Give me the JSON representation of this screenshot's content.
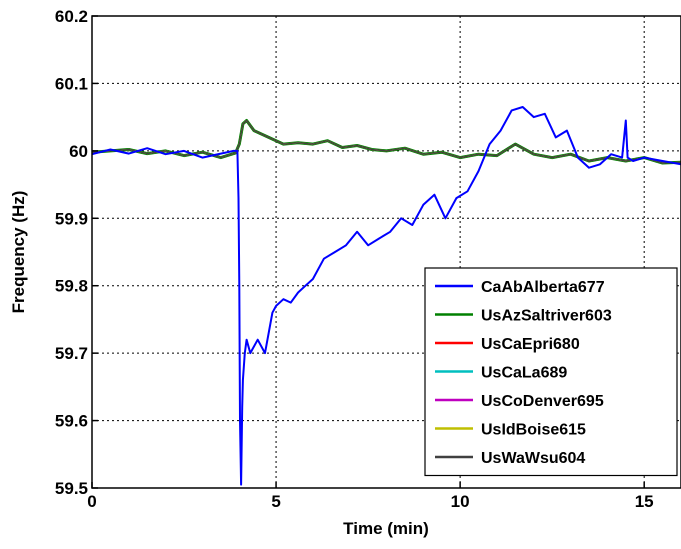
{
  "chart_data": {
    "type": "line",
    "title": "",
    "xlabel": "Time (min)",
    "ylabel": "Frequency (Hz)",
    "xlim": [
      0,
      16
    ],
    "ylim": [
      59.5,
      60.2
    ],
    "xticks": [
      0,
      5,
      10,
      15
    ],
    "yticks": [
      59.5,
      59.6,
      59.7,
      59.8,
      59.9,
      60,
      60.1,
      60.2
    ],
    "xtick_labels": [
      "0",
      "5",
      "10",
      "15"
    ],
    "ytick_labels": [
      "59.5",
      "59.6",
      "59.7",
      "59.8",
      "59.9",
      "60",
      "60.1",
      "60.2"
    ],
    "grid": true,
    "legend_position": "bottom-right",
    "series": [
      {
        "name": "CaAbAlberta677",
        "color": "#0000ff",
        "x": [
          0,
          0.5,
          1,
          1.5,
          2,
          2.5,
          3,
          3.5,
          3.85,
          3.95,
          3.98,
          4.0,
          4.02,
          4.05,
          4.08,
          4.1,
          4.15,
          4.2,
          4.3,
          4.5,
          4.7,
          4.9,
          5.0,
          5.2,
          5.4,
          5.6,
          5.8,
          6.0,
          6.3,
          6.6,
          6.9,
          7.2,
          7.5,
          7.8,
          8.1,
          8.4,
          8.7,
          9.0,
          9.3,
          9.6,
          9.9,
          10.2,
          10.5,
          10.8,
          11.1,
          11.4,
          11.7,
          12.0,
          12.3,
          12.6,
          12.9,
          13.2,
          13.5,
          13.8,
          14.1,
          14.4,
          14.5,
          14.55,
          14.7,
          15.0,
          15.5,
          16.0
        ],
        "y": [
          59.995,
          60.002,
          59.996,
          60.004,
          59.995,
          60.0,
          59.99,
          59.996,
          60.0,
          60.0,
          59.93,
          59.8,
          59.6,
          59.505,
          59.62,
          59.66,
          59.7,
          59.72,
          59.7,
          59.72,
          59.7,
          59.76,
          59.77,
          59.78,
          59.775,
          59.79,
          59.8,
          59.81,
          59.84,
          59.85,
          59.86,
          59.88,
          59.86,
          59.87,
          59.88,
          59.9,
          59.89,
          59.92,
          59.935,
          59.9,
          59.93,
          59.94,
          59.97,
          60.01,
          60.03,
          60.06,
          60.065,
          60.05,
          60.055,
          60.02,
          60.03,
          59.99,
          59.975,
          59.98,
          59.995,
          59.99,
          60.045,
          59.99,
          59.985,
          59.99,
          59.985,
          59.98
        ]
      },
      {
        "name": "UsAzSaltriver603",
        "color": "#008000",
        "x": [
          0,
          0.5,
          1,
          1.5,
          2,
          2.5,
          3,
          3.5,
          3.9,
          4.0,
          4.1,
          4.2,
          4.4,
          4.8,
          5.2,
          5.6,
          6.0,
          6.4,
          6.8,
          7.2,
          7.6,
          8.0,
          8.5,
          9.0,
          9.5,
          10.0,
          10.5,
          11.0,
          11.5,
          12.0,
          12.5,
          13.0,
          13.5,
          14.0,
          14.5,
          15.0,
          15.5,
          16.0
        ],
        "y": [
          59.998,
          60.0,
          60.002,
          59.996,
          60.0,
          59.993,
          59.998,
          59.99,
          59.997,
          60.01,
          60.04,
          60.045,
          60.03,
          60.02,
          60.01,
          60.012,
          60.01,
          60.015,
          60.005,
          60.008,
          60.002,
          60.0,
          60.004,
          59.995,
          59.998,
          59.99,
          59.995,
          59.993,
          60.01,
          59.995,
          59.99,
          59.995,
          59.985,
          59.99,
          59.985,
          59.99,
          59.982,
          59.983
        ]
      },
      {
        "name": "UsCaEpri680",
        "color": "#ff0000",
        "x": [
          0,
          0.5,
          1,
          1.5,
          2,
          2.5,
          3,
          3.5,
          3.9,
          4.0,
          4.1,
          4.2,
          4.4,
          4.8,
          5.2,
          5.6,
          6.0,
          6.4,
          6.8,
          7.2,
          7.6,
          8.0,
          8.5,
          9.0,
          9.5,
          10.0,
          10.5,
          11.0,
          11.5,
          12.0,
          12.5,
          13.0,
          13.5,
          14.0,
          14.5,
          15.0,
          15.5,
          16.0
        ],
        "y": [
          59.998,
          60.0,
          60.002,
          59.996,
          60.0,
          59.993,
          59.998,
          59.99,
          59.997,
          60.01,
          60.04,
          60.045,
          60.03,
          60.02,
          60.01,
          60.012,
          60.01,
          60.015,
          60.005,
          60.008,
          60.002,
          60.0,
          60.004,
          59.995,
          59.998,
          59.99,
          59.995,
          59.993,
          60.01,
          59.995,
          59.99,
          59.995,
          59.985,
          59.99,
          59.985,
          59.99,
          59.982,
          59.983
        ]
      },
      {
        "name": "UsCaLa689",
        "color": "#00bfbf",
        "x": [
          0,
          0.5,
          1,
          1.5,
          2,
          2.5,
          3,
          3.5,
          3.9,
          4.0,
          4.1,
          4.2,
          4.4,
          4.8,
          5.2,
          5.6,
          6.0,
          6.4,
          6.8,
          7.2,
          7.6,
          8.0,
          8.5,
          9.0,
          9.5,
          10.0,
          10.5,
          11.0,
          11.5,
          12.0,
          12.5,
          13.0,
          13.5,
          14.0,
          14.5,
          15.0,
          15.5,
          16.0
        ],
        "y": [
          59.998,
          60.0,
          60.002,
          59.996,
          60.0,
          59.993,
          59.998,
          59.99,
          59.997,
          60.01,
          60.04,
          60.045,
          60.03,
          60.02,
          60.01,
          60.012,
          60.01,
          60.015,
          60.005,
          60.008,
          60.002,
          60.0,
          60.004,
          59.995,
          59.998,
          59.99,
          59.995,
          59.993,
          60.01,
          59.995,
          59.99,
          59.995,
          59.985,
          59.99,
          59.985,
          59.99,
          59.982,
          59.983
        ]
      },
      {
        "name": "UsCoDenver695",
        "color": "#bf00bf",
        "x": [
          0,
          0.5,
          1,
          1.5,
          2,
          2.5,
          3,
          3.5,
          3.9,
          4.0,
          4.1,
          4.2,
          4.4,
          4.8,
          5.2,
          5.6,
          6.0,
          6.4,
          6.8,
          7.2,
          7.6,
          8.0,
          8.5,
          9.0,
          9.5,
          10.0,
          10.5,
          11.0,
          11.5,
          12.0,
          12.5,
          13.0,
          13.5,
          14.0,
          14.5,
          15.0,
          15.5,
          16.0
        ],
        "y": [
          59.998,
          60.0,
          60.002,
          59.996,
          60.0,
          59.993,
          59.998,
          59.99,
          59.997,
          60.01,
          60.04,
          60.045,
          60.03,
          60.02,
          60.01,
          60.012,
          60.01,
          60.015,
          60.005,
          60.008,
          60.002,
          60.0,
          60.004,
          59.995,
          59.998,
          59.99,
          59.995,
          59.993,
          60.01,
          59.995,
          59.99,
          59.995,
          59.985,
          59.99,
          59.985,
          59.99,
          59.982,
          59.983
        ]
      },
      {
        "name": "UsIdBoise615",
        "color": "#bfbf00",
        "x": [
          0,
          0.5,
          1,
          1.5,
          2,
          2.5,
          3,
          3.5,
          3.9,
          4.0,
          4.1,
          4.2,
          4.4,
          4.8,
          5.2,
          5.6,
          6.0,
          6.4,
          6.8,
          7.2,
          7.6,
          8.0,
          8.5,
          9.0,
          9.5,
          10.0,
          10.5,
          11.0,
          11.5,
          12.0,
          12.5,
          13.0,
          13.5,
          14.0,
          14.5,
          15.0,
          15.5,
          16.0
        ],
        "y": [
          59.998,
          60.0,
          60.002,
          59.996,
          60.0,
          59.993,
          59.998,
          59.99,
          59.997,
          60.01,
          60.04,
          60.045,
          60.03,
          60.02,
          60.01,
          60.012,
          60.01,
          60.015,
          60.005,
          60.008,
          60.002,
          60.0,
          60.004,
          59.995,
          59.998,
          59.99,
          59.995,
          59.993,
          60.01,
          59.995,
          59.99,
          59.995,
          59.985,
          59.99,
          59.985,
          59.99,
          59.982,
          59.983
        ]
      },
      {
        "name": "UsWaWsu604",
        "color": "#404040",
        "x": [
          0,
          0.5,
          1,
          1.5,
          2,
          2.5,
          3,
          3.5,
          3.9,
          4.0,
          4.1,
          4.2,
          4.4,
          4.8,
          5.2,
          5.6,
          6.0,
          6.4,
          6.8,
          7.2,
          7.6,
          8.0,
          8.5,
          9.0,
          9.5,
          10.0,
          10.5,
          11.0,
          11.5,
          12.0,
          12.5,
          13.0,
          13.5,
          14.0,
          14.5,
          15.0,
          15.5,
          16.0
        ],
        "y": [
          59.998,
          60.0,
          60.002,
          59.996,
          60.0,
          59.993,
          59.998,
          59.99,
          59.997,
          60.01,
          60.04,
          60.045,
          60.03,
          60.02,
          60.01,
          60.012,
          60.01,
          60.015,
          60.005,
          60.008,
          60.002,
          60.0,
          60.004,
          59.995,
          59.998,
          59.99,
          59.995,
          59.993,
          60.01,
          59.995,
          59.99,
          59.995,
          59.985,
          59.99,
          59.985,
          59.99,
          59.982,
          59.983
        ]
      }
    ]
  }
}
